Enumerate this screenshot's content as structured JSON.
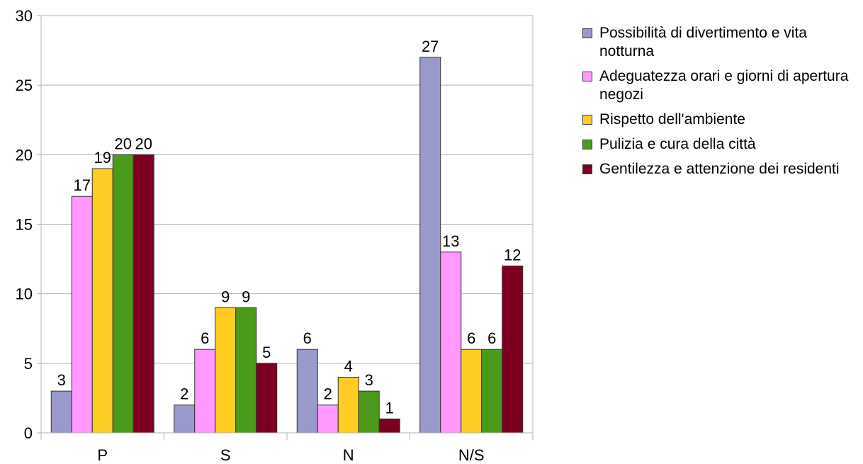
{
  "chart_data": {
    "type": "bar",
    "categories": [
      "P",
      "S",
      "N",
      "N/S"
    ],
    "series": [
      {
        "name": "Possibilità di divertimento e vita notturna",
        "color": "#9999cc",
        "values": [
          3,
          2,
          6,
          27
        ]
      },
      {
        "name": "Adeguatezza orari e giorni di apertura negozi",
        "color": "#ff99ff",
        "values": [
          17,
          6,
          2,
          13
        ]
      },
      {
        "name": "Rispetto dell'ambiente",
        "color": "#ffcc22",
        "values": [
          19,
          9,
          4,
          6
        ]
      },
      {
        "name": "Pulizia e cura della città",
        "color": "#4c9a1c",
        "values": [
          20,
          9,
          3,
          6
        ]
      },
      {
        "name": "Gentilezza e attenzione dei residenti",
        "color": "#7e0021",
        "values": [
          20,
          5,
          1,
          12
        ]
      }
    ],
    "title": "",
    "xlabel": "",
    "ylabel": "",
    "ylim": [
      0,
      30
    ],
    "yticks": [
      "0",
      "5",
      "10",
      "15",
      "20",
      "25",
      "30"
    ],
    "grid": true,
    "legend_position": "right",
    "data_labels": true
  }
}
